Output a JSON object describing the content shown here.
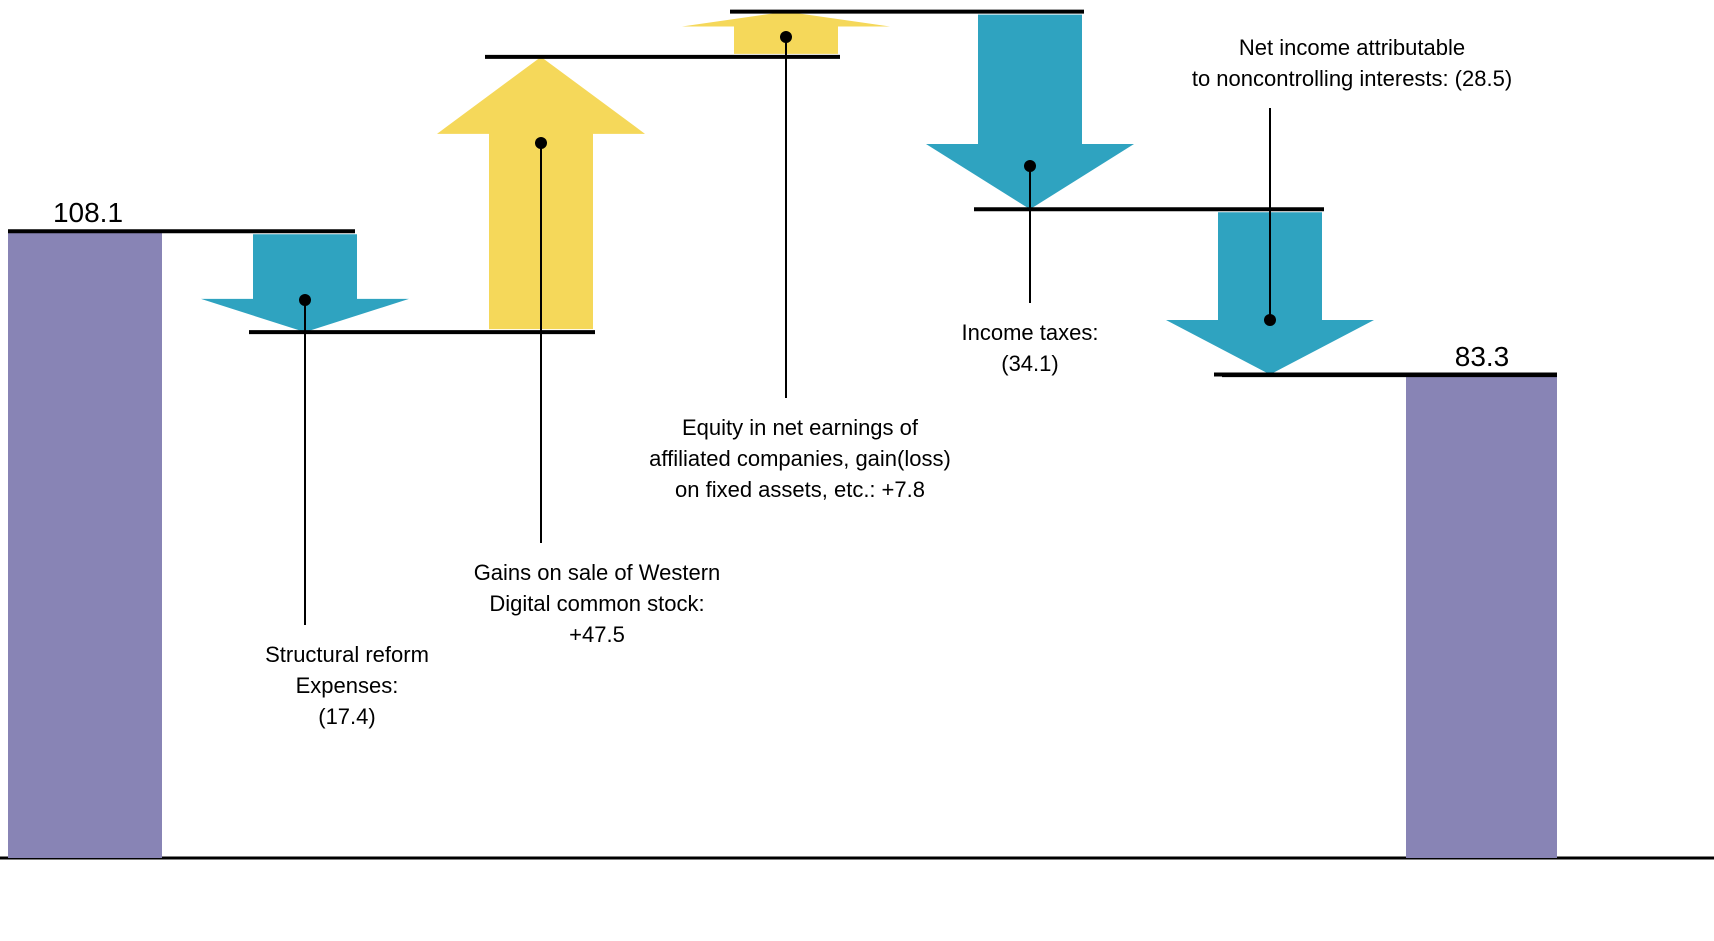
{
  "chart_data": {
    "type": "waterfall",
    "start_value": 108.1,
    "end_value": 83.3,
    "categories": [
      [
        "Structural reform",
        "Expenses:"
      ],
      [
        "Gains on sale of Western",
        "Digital common stock:"
      ],
      [
        "Equity in net earnings of",
        "affiliated companies, gain(loss)",
        "on fixed assets, etc.:"
      ],
      [
        "Income taxes:"
      ],
      [
        "Net income attributable",
        "to noncontrolling interests:"
      ]
    ],
    "values": [
      -17.4,
      47.5,
      7.8,
      -34.1,
      -28.5
    ],
    "value_labels": [
      "(17.4)",
      "+47.5",
      "+7.8",
      "(34.1)",
      "(28.5)"
    ],
    "colors": {
      "increase": "#f5d85a",
      "decrease": "#2fa3c0",
      "total": "#8884b5"
    },
    "ylim": [
      0,
      148
    ]
  }
}
